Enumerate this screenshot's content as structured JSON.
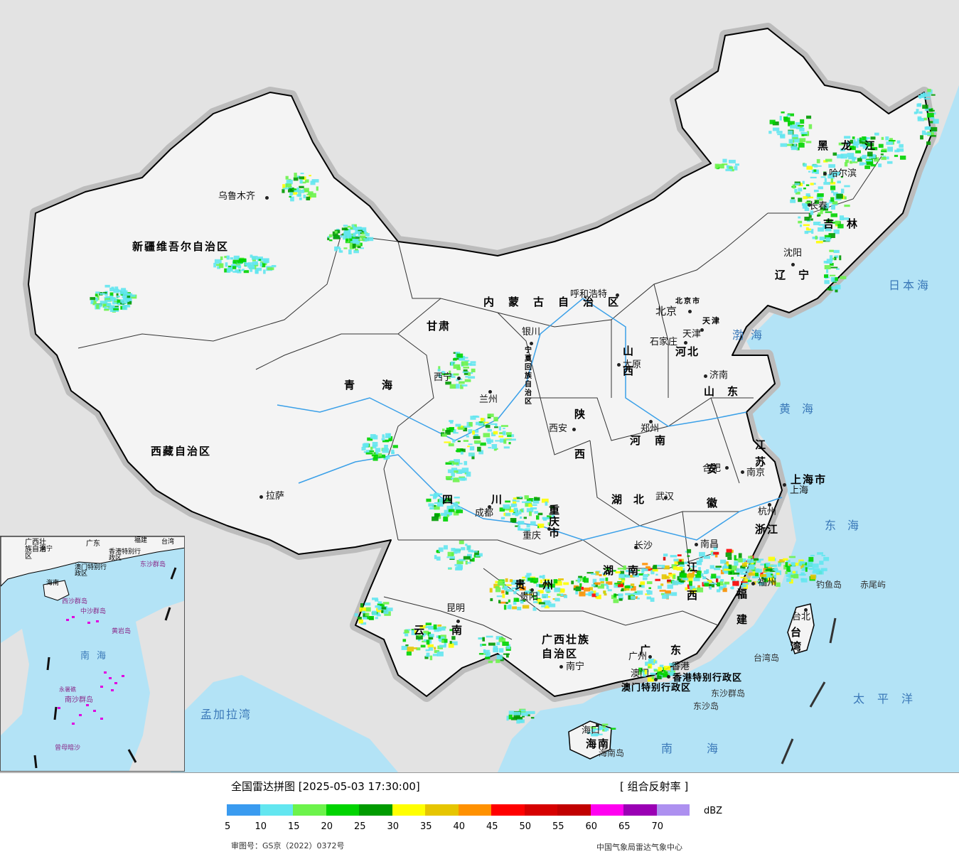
{
  "map": {
    "provinces": [
      {
        "name": "新疆维吾尔自治区"
      },
      {
        "name": "西藏自治区"
      },
      {
        "name": "青海"
      },
      {
        "name": "甘肃"
      },
      {
        "name": "内蒙古自治区"
      },
      {
        "name": "黑龙江"
      },
      {
        "name": "吉林"
      },
      {
        "name": "辽宁"
      },
      {
        "name": "河北"
      },
      {
        "name": "山西"
      },
      {
        "name": "陕西"
      },
      {
        "name": "河南"
      },
      {
        "name": "山东"
      },
      {
        "name": "江苏"
      },
      {
        "name": "安徽"
      },
      {
        "name": "浙江"
      },
      {
        "name": "江西"
      },
      {
        "name": "福建"
      },
      {
        "name": "湖北"
      },
      {
        "name": "湖南"
      },
      {
        "name": "四川"
      },
      {
        "name": "重庆市"
      },
      {
        "name": "贵州"
      },
      {
        "name": "云南"
      },
      {
        "name": "广西壮族自治区"
      },
      {
        "name": "广东"
      },
      {
        "name": "海南"
      },
      {
        "name": "台湾"
      },
      {
        "name": "上海市"
      },
      {
        "name": "天津"
      },
      {
        "name": "北京市"
      },
      {
        "name": "宁夏回族自治区"
      },
      {
        "name": "香港特别行政区"
      },
      {
        "name": "澳门特别行政区"
      }
    ],
    "cities": [
      "乌鲁木齐",
      "拉萨",
      "西宁",
      "兰州",
      "银川",
      "呼和浩特",
      "北京",
      "天津",
      "石家庄",
      "太原",
      "济南",
      "郑州",
      "西安",
      "合肥",
      "南京",
      "上海",
      "杭州",
      "武汉",
      "成都",
      "重庆",
      "长沙",
      "南昌",
      "福州",
      "台北",
      "贵阳",
      "昆明",
      "南宁",
      "广州",
      "香港",
      "澳门",
      "海口",
      "哈尔滨",
      "长春",
      "沈阳"
    ],
    "seas": [
      "日本海",
      "渤海",
      "黄海",
      "东海",
      "太平洋",
      "南海",
      "孟加拉湾"
    ],
    "islands": [
      "钓鱼岛",
      "赤尾屿",
      "台湾岛",
      "东沙群岛",
      "东沙岛",
      "海南岛"
    ],
    "inset_labels": [
      "广西壮族自治区",
      "南宁",
      "广东",
      "福建",
      "台湾",
      "香港特别行政区",
      "澳门特别行政区",
      "东沙群岛",
      "海南",
      "西沙群岛",
      "中沙群岛",
      "黄岩岛",
      "南海",
      "南沙群岛",
      "曾母暗沙",
      "永暑礁"
    ],
    "colors": {
      "sea": "#b3e3f6",
      "land_outside": "#e3e3e3",
      "china_land": "#f2f2f2",
      "border": "#000000",
      "rivers": "#3aa0e8"
    }
  },
  "legend": {
    "title": "全国雷达拼图 [2025-05-03 17:30:00]",
    "product": "[ 组合反射率 ]",
    "unit": "dBZ",
    "ticks": [
      "5",
      "10",
      "15",
      "20",
      "25",
      "30",
      "35",
      "40",
      "45",
      "50",
      "55",
      "60",
      "65",
      "70"
    ],
    "colors": [
      "#3a9bf0",
      "#63e6f0",
      "#6cf34b",
      "#00d400",
      "#009b00",
      "#ffff00",
      "#e6c500",
      "#ff9100",
      "#ff0000",
      "#d60000",
      "#c10000",
      "#ff00f0",
      "#9a00b4",
      "#ad90f0"
    ],
    "review_no": "审图号：GS京（2022）0372号",
    "source": "中国气象局雷达气象中心"
  }
}
